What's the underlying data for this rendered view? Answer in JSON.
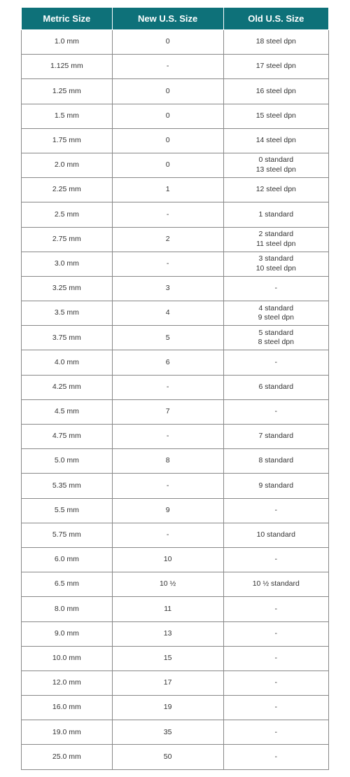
{
  "table": {
    "type": "table",
    "header_background": "#0e7179",
    "header_text_color": "#ffffff",
    "header_fontsize": 13,
    "cell_fontsize": 10.5,
    "cell_text_color": "#333333",
    "border_color": "#888888",
    "row_height": 35.2,
    "columns": [
      {
        "label": "Metric Size",
        "width": "33%"
      },
      {
        "label": "New U.S. Size",
        "width": "33%"
      },
      {
        "label": "Old U.S. Size",
        "width": "34%"
      }
    ],
    "rows": [
      [
        "1.0 mm",
        "0",
        "18 steel dpn"
      ],
      [
        "1.125 mm",
        "-",
        "17 steel dpn"
      ],
      [
        "1.25 mm",
        "0",
        "16 steel dpn"
      ],
      [
        "1.5 mm",
        "0",
        "15 steel dpn"
      ],
      [
        "1.75 mm",
        "0",
        "14 steel dpn"
      ],
      [
        "2.0 mm",
        "0",
        "0 standard\n13 steel dpn"
      ],
      [
        "2.25 mm",
        "1",
        "12 steel dpn"
      ],
      [
        "2.5 mm",
        "-",
        "1 standard"
      ],
      [
        "2.75 mm",
        "2",
        "2 standard\n11 steel dpn"
      ],
      [
        "3.0 mm",
        "-",
        "3 standard\n10 steel dpn"
      ],
      [
        "3.25 mm",
        "3",
        "-"
      ],
      [
        "3.5 mm",
        "4",
        "4 standard\n9 steel dpn"
      ],
      [
        "3.75 mm",
        "5",
        "5 standard\n8 steel dpn"
      ],
      [
        "4.0 mm",
        "6",
        "-"
      ],
      [
        "4.25 mm",
        "-",
        "6 standard"
      ],
      [
        "4.5 mm",
        "7",
        "-"
      ],
      [
        "4.75 mm",
        "-",
        "7 standard"
      ],
      [
        "5.0 mm",
        "8",
        "8 standard"
      ],
      [
        "5.35 mm",
        "-",
        "9 standard"
      ],
      [
        "5.5 mm",
        "9",
        "-"
      ],
      [
        "5.75 mm",
        "-",
        "10 standard"
      ],
      [
        "6.0 mm",
        "10",
        "-"
      ],
      [
        "6.5 mm",
        "10 ½",
        "10 ½ standard"
      ],
      [
        "8.0 mm",
        "11",
        "-"
      ],
      [
        "9.0 mm",
        "13",
        "-"
      ],
      [
        "10.0 mm",
        "15",
        "-"
      ],
      [
        "12.0 mm",
        "17",
        "-"
      ],
      [
        "16.0 mm",
        "19",
        "-"
      ],
      [
        "19.0 mm",
        "35",
        "-"
      ],
      [
        "25.0 mm",
        "50",
        "-"
      ]
    ]
  }
}
